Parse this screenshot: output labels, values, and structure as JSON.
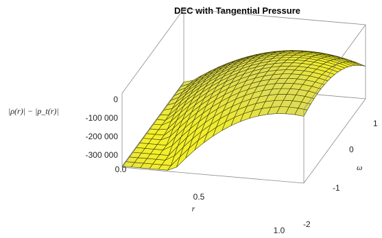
{
  "chart_data": {
    "type": "surface3d",
    "title": "DEC with Tangential Pressure",
    "xlabel": "r",
    "ylabel": "ω",
    "zlabel": "|ρ(r)| − |p_t(r)|",
    "xlim": [
      0.0,
      1.0
    ],
    "ylim": [
      -2,
      2
    ],
    "zlim": [
      -350000,
      0
    ],
    "x_ticks": [
      "0.0",
      "0.5",
      "1.0"
    ],
    "y_ticks": [
      "-2",
      "-1",
      "0",
      "1"
    ],
    "z_ticks": [
      "0",
      "-100 000",
      "-200 000",
      "-300 000"
    ],
    "grid_r": 20,
    "grid_w": 18,
    "surface": {
      "description_values": {
        "z_at_r0_w_pos2": -320000,
        "z_at_r0_w_neg2": -250000,
        "z_max_near_r0.85_w0.8": 0,
        "z_at_r1_w_pos2": -30000,
        "z_at_r1_w_neg2": -210000
      }
    },
    "colors": {
      "surface": "#f2ee2a",
      "mesh": "#3a3a00",
      "box": "#888888"
    }
  }
}
